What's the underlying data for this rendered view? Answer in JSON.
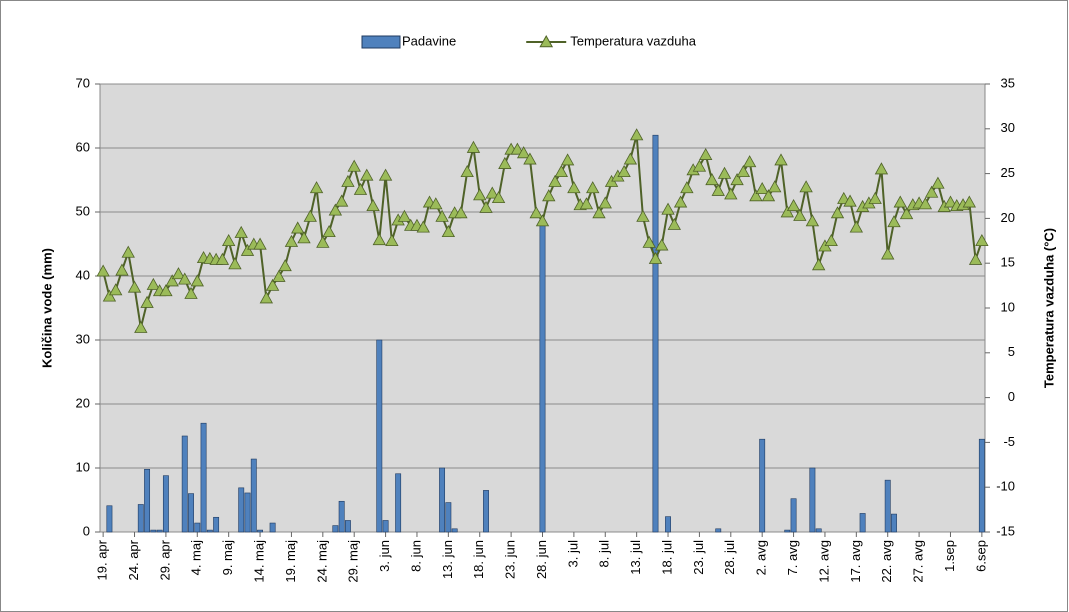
{
  "chart_data": {
    "type": "bar",
    "y_label": "Količina vode (mm)",
    "y2_label": "Temperatura vazduha (°C)",
    "categories": [
      "19. apr",
      null,
      null,
      null,
      null,
      "24. apr",
      null,
      null,
      null,
      null,
      "29. apr",
      null,
      null,
      null,
      null,
      "4. maj",
      null,
      null,
      null,
      null,
      "9. maj",
      null,
      null,
      null,
      null,
      "14. maj",
      null,
      null,
      null,
      null,
      "19. maj",
      null,
      null,
      null,
      null,
      "24. maj",
      null,
      null,
      null,
      null,
      "29. maj",
      null,
      null,
      null,
      null,
      "3. jun",
      null,
      null,
      null,
      null,
      "8. jun",
      null,
      null,
      null,
      null,
      "13. jun",
      null,
      null,
      null,
      null,
      "18. jun",
      null,
      null,
      null,
      null,
      "23. jun",
      null,
      null,
      null,
      null,
      "28. jun",
      null,
      null,
      null,
      null,
      "3. jul",
      null,
      null,
      null,
      null,
      "8. jul",
      null,
      null,
      null,
      null,
      "13. jul",
      null,
      null,
      null,
      null,
      "18. jul",
      null,
      null,
      null,
      null,
      "23. jul",
      null,
      null,
      null,
      null,
      "28. jul",
      null,
      null,
      null,
      null,
      "2. avg",
      null,
      null,
      null,
      null,
      "7. avg",
      null,
      null,
      null,
      null,
      "12. avg",
      null,
      null,
      null,
      null,
      "17. avg",
      null,
      null,
      null,
      null,
      "22. avg",
      null,
      null,
      null,
      null,
      "27. avg",
      null,
      null,
      null,
      null,
      "1.sep",
      null,
      null,
      null,
      null,
      "6.sep"
    ],
    "series": [
      {
        "name": "Padavine",
        "type": "bar",
        "color": "#4f81bd",
        "values": [
          0,
          4.1,
          0,
          0,
          0,
          0,
          4.3,
          9.8,
          0.3,
          0.3,
          8.8,
          0,
          0,
          15,
          6,
          1.4,
          17,
          0.3,
          2.3,
          0,
          0,
          0,
          6.9,
          6.1,
          11.4,
          0.3,
          0,
          1.4,
          0,
          0,
          0,
          0,
          0,
          0,
          0,
          0,
          0,
          1,
          4.8,
          1.8,
          0,
          0,
          0,
          0,
          30,
          1.8,
          0,
          9.1,
          0,
          0,
          0,
          0,
          0,
          0,
          10,
          4.6,
          0.5,
          0,
          0,
          0,
          0,
          6.5,
          0,
          0,
          0,
          0,
          0,
          0,
          0,
          0,
          48,
          0,
          0,
          0,
          0,
          0,
          0,
          0,
          0,
          0,
          0,
          0,
          0,
          0,
          0,
          0,
          0,
          0,
          62,
          0,
          2.4,
          0,
          0,
          0,
          0,
          0,
          0,
          0,
          0.5,
          0,
          0,
          0,
          0,
          0,
          0,
          14.5,
          0,
          0,
          0,
          0.3,
          5.2,
          0,
          0,
          10,
          0.5,
          0,
          0,
          0,
          0,
          0,
          0,
          2.9,
          0,
          0,
          0,
          8.1,
          2.8,
          0,
          0,
          0,
          0,
          0,
          0,
          0,
          0,
          0,
          0,
          0,
          0,
          0,
          14.5
        ]
      },
      {
        "name": "Temperatura vazduha",
        "type": "line",
        "axis": "y2",
        "color": "#4f6228",
        "marker_color": "#9bbb59",
        "values": [
          14.1,
          11.3,
          12,
          14.2,
          16.2,
          12.3,
          7.8,
          10.6,
          12.6,
          11.9,
          11.9,
          13,
          13.8,
          13.2,
          11.6,
          13,
          15.6,
          15.5,
          15.4,
          15.4,
          17.5,
          14.9,
          18.4,
          16.4,
          17.1,
          17.1,
          11.1,
          12.5,
          13.5,
          14.7,
          17.4,
          18.9,
          17.8,
          20.2,
          23.4,
          17.3,
          18.5,
          20.9,
          21.9,
          24.1,
          25.8,
          23.2,
          24.8,
          21.4,
          17.6,
          24.8,
          17.5,
          19.8,
          20.2,
          19.2,
          19.2,
          19,
          21.8,
          21.6,
          20.2,
          18.5,
          20.6,
          20.6,
          25.2,
          27.9,
          22.6,
          21.2,
          22.8,
          22.3,
          26.1,
          27.7,
          27.7,
          27.3,
          26.6,
          20.6,
          19.7,
          22.5,
          24.1,
          25.2,
          26.5,
          23.4,
          21.5,
          21.6,
          23.4,
          20.6,
          21.7,
          24.1,
          24.7,
          25.2,
          26.6,
          29.3,
          20.2,
          17.3,
          15.5,
          17,
          21,
          19.3,
          21.8,
          23.4,
          25.4,
          25.8,
          27.1,
          24.3,
          23.1,
          25,
          22.7,
          24.3,
          25.2,
          26.3,
          22.5,
          23.3,
          22.5,
          23.5,
          26.5,
          20.7,
          21.4,
          20.3,
          23.5,
          19.7,
          14.8,
          16.9,
          17.5,
          20.6,
          22.2,
          21.9,
          19,
          21.3,
          21.7,
          22.2,
          25.5,
          16,
          19.6,
          21.8,
          20.5,
          21.5,
          21.7,
          21.6,
          22.9,
          23.9,
          21.3,
          21.8,
          21.4,
          21.5,
          21.8,
          15.4,
          17.5
        ]
      }
    ],
    "ylim": [
      0,
      70
    ],
    "yticks": [
      0,
      10,
      20,
      30,
      40,
      50,
      60,
      70
    ],
    "y2lim": [
      -15,
      35
    ],
    "y2ticks": [
      -15,
      -10,
      -5,
      0,
      5,
      10,
      15,
      20,
      25,
      30,
      35
    ],
    "grid": true,
    "legend": "top",
    "plot_background": "#d9d9d9"
  }
}
